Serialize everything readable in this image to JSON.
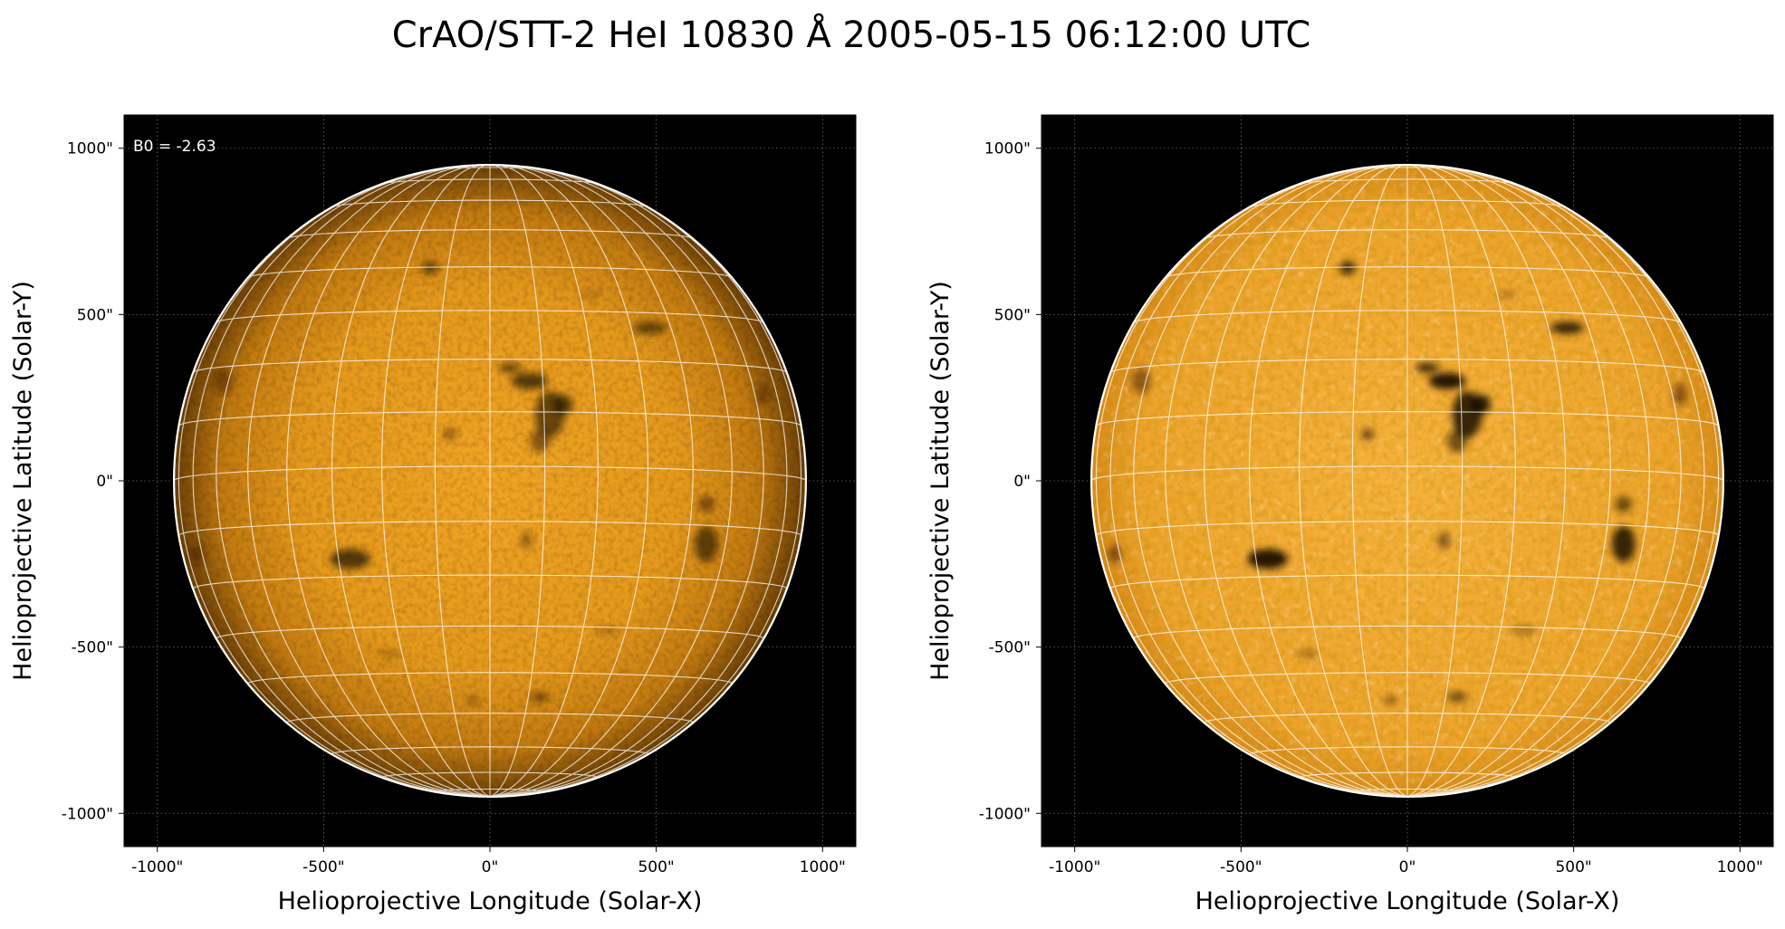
{
  "figure": {
    "title": "CrAO/STT-2 HeI 10830 Å 2005-05-15 06:12:00 UTC"
  },
  "colors": {
    "background": "#000000",
    "disk_center": "#f2a524",
    "disk_mid": "#dc8c14",
    "disk_limb": "#7a4a08",
    "disk_center_enhanced": "#f7b03a",
    "disk_limb_enhanced": "#d88a1a",
    "feature": "#1a0c00",
    "grid_overlay": "#ffffff",
    "axis_grid": "#bbbbbb"
  },
  "chart_data": [
    {
      "type": "heatmap",
      "panel": "left",
      "image": "solar full-disk HeI 10830 Å image (AIA-like orange colormap)",
      "xlabel": "Helioprojective Longitude (Solar-X)",
      "ylabel": "Helioprojective Latitude (Solar-Y)",
      "xlim": [
        -1100,
        1100
      ],
      "ylim": [
        -1100,
        1100
      ],
      "xticks": [
        -1000,
        -500,
        0,
        500,
        1000
      ],
      "yticks": [
        -1000,
        -500,
        0,
        500,
        1000
      ],
      "xtick_labels": [
        "-1000\"",
        "-500\"",
        "0\"",
        "500\"",
        "1000\""
      ],
      "ytick_labels": [
        "-1000\"",
        "-500\"",
        "0\"",
        "500\"",
        "1000\""
      ],
      "solar_radius_arcsec": 950,
      "annotation": "B0 = -2.63",
      "grid": true,
      "heliographic_grid": true
    },
    {
      "type": "heatmap",
      "panel": "right",
      "image": "solar full-disk HeI 10830 Å image, limb-darkening corrected",
      "xlabel": "Helioprojective Longitude (Solar-X)",
      "ylabel": "Helioprojective Latitude (Solar-Y)",
      "xlim": [
        -1100,
        1100
      ],
      "ylim": [
        -1100,
        1100
      ],
      "xticks": [
        -1000,
        -500,
        0,
        500,
        1000
      ],
      "yticks": [
        -1000,
        -500,
        0,
        500,
        1000
      ],
      "xtick_labels": [
        "-1000\"",
        "-500\"",
        "0\"",
        "500\"",
        "1000\""
      ],
      "ytick_labels": [
        "-1000\"",
        "-500\"",
        "0\"",
        "500\"",
        "1000\""
      ],
      "solar_radius_arcsec": 950,
      "grid": true,
      "heliographic_grid": true
    }
  ],
  "grid_spec": {
    "b0_deg": -2.63,
    "longitude_step_deg": 10,
    "latitude_step_deg": 10
  },
  "features": [
    {
      "x": 120,
      "y": 300,
      "rx": 55,
      "ry": 25,
      "strength": 0.95
    },
    {
      "x": 180,
      "y": 200,
      "rx": 45,
      "ry": 70,
      "strength": 0.85
    },
    {
      "x": 220,
      "y": 230,
      "rx": 30,
      "ry": 30,
      "strength": 0.9
    },
    {
      "x": 60,
      "y": 340,
      "rx": 35,
      "ry": 15,
      "strength": 0.8
    },
    {
      "x": 150,
      "y": 120,
      "rx": 30,
      "ry": 35,
      "strength": 0.6
    },
    {
      "x": -420,
      "y": -235,
      "rx": 60,
      "ry": 30,
      "strength": 0.95
    },
    {
      "x": 650,
      "y": -190,
      "rx": 35,
      "ry": 55,
      "strength": 0.85
    },
    {
      "x": 650,
      "y": -70,
      "rx": 25,
      "ry": 25,
      "strength": 0.6
    },
    {
      "x": 480,
      "y": 460,
      "rx": 50,
      "ry": 18,
      "strength": 0.85
    },
    {
      "x": -180,
      "y": 640,
      "rx": 25,
      "ry": 20,
      "strength": 0.8
    },
    {
      "x": -120,
      "y": 140,
      "rx": 20,
      "ry": 20,
      "strength": 0.5
    },
    {
      "x": 110,
      "y": -180,
      "rx": 18,
      "ry": 25,
      "strength": 0.5
    },
    {
      "x": 150,
      "y": -650,
      "rx": 30,
      "ry": 15,
      "strength": 0.6
    },
    {
      "x": -50,
      "y": -660,
      "rx": 20,
      "ry": 12,
      "strength": 0.45
    },
    {
      "x": -800,
      "y": 300,
      "rx": 30,
      "ry": 40,
      "strength": 0.4
    },
    {
      "x": 820,
      "y": 260,
      "rx": 20,
      "ry": 35,
      "strength": 0.45
    },
    {
      "x": -880,
      "y": -220,
      "rx": 20,
      "ry": 30,
      "strength": 0.45
    },
    {
      "x": 350,
      "y": -450,
      "rx": 40,
      "ry": 12,
      "strength": 0.35
    },
    {
      "x": -300,
      "y": -520,
      "rx": 35,
      "ry": 10,
      "strength": 0.35
    },
    {
      "x": 300,
      "y": 560,
      "rx": 30,
      "ry": 10,
      "strength": 0.3
    }
  ]
}
